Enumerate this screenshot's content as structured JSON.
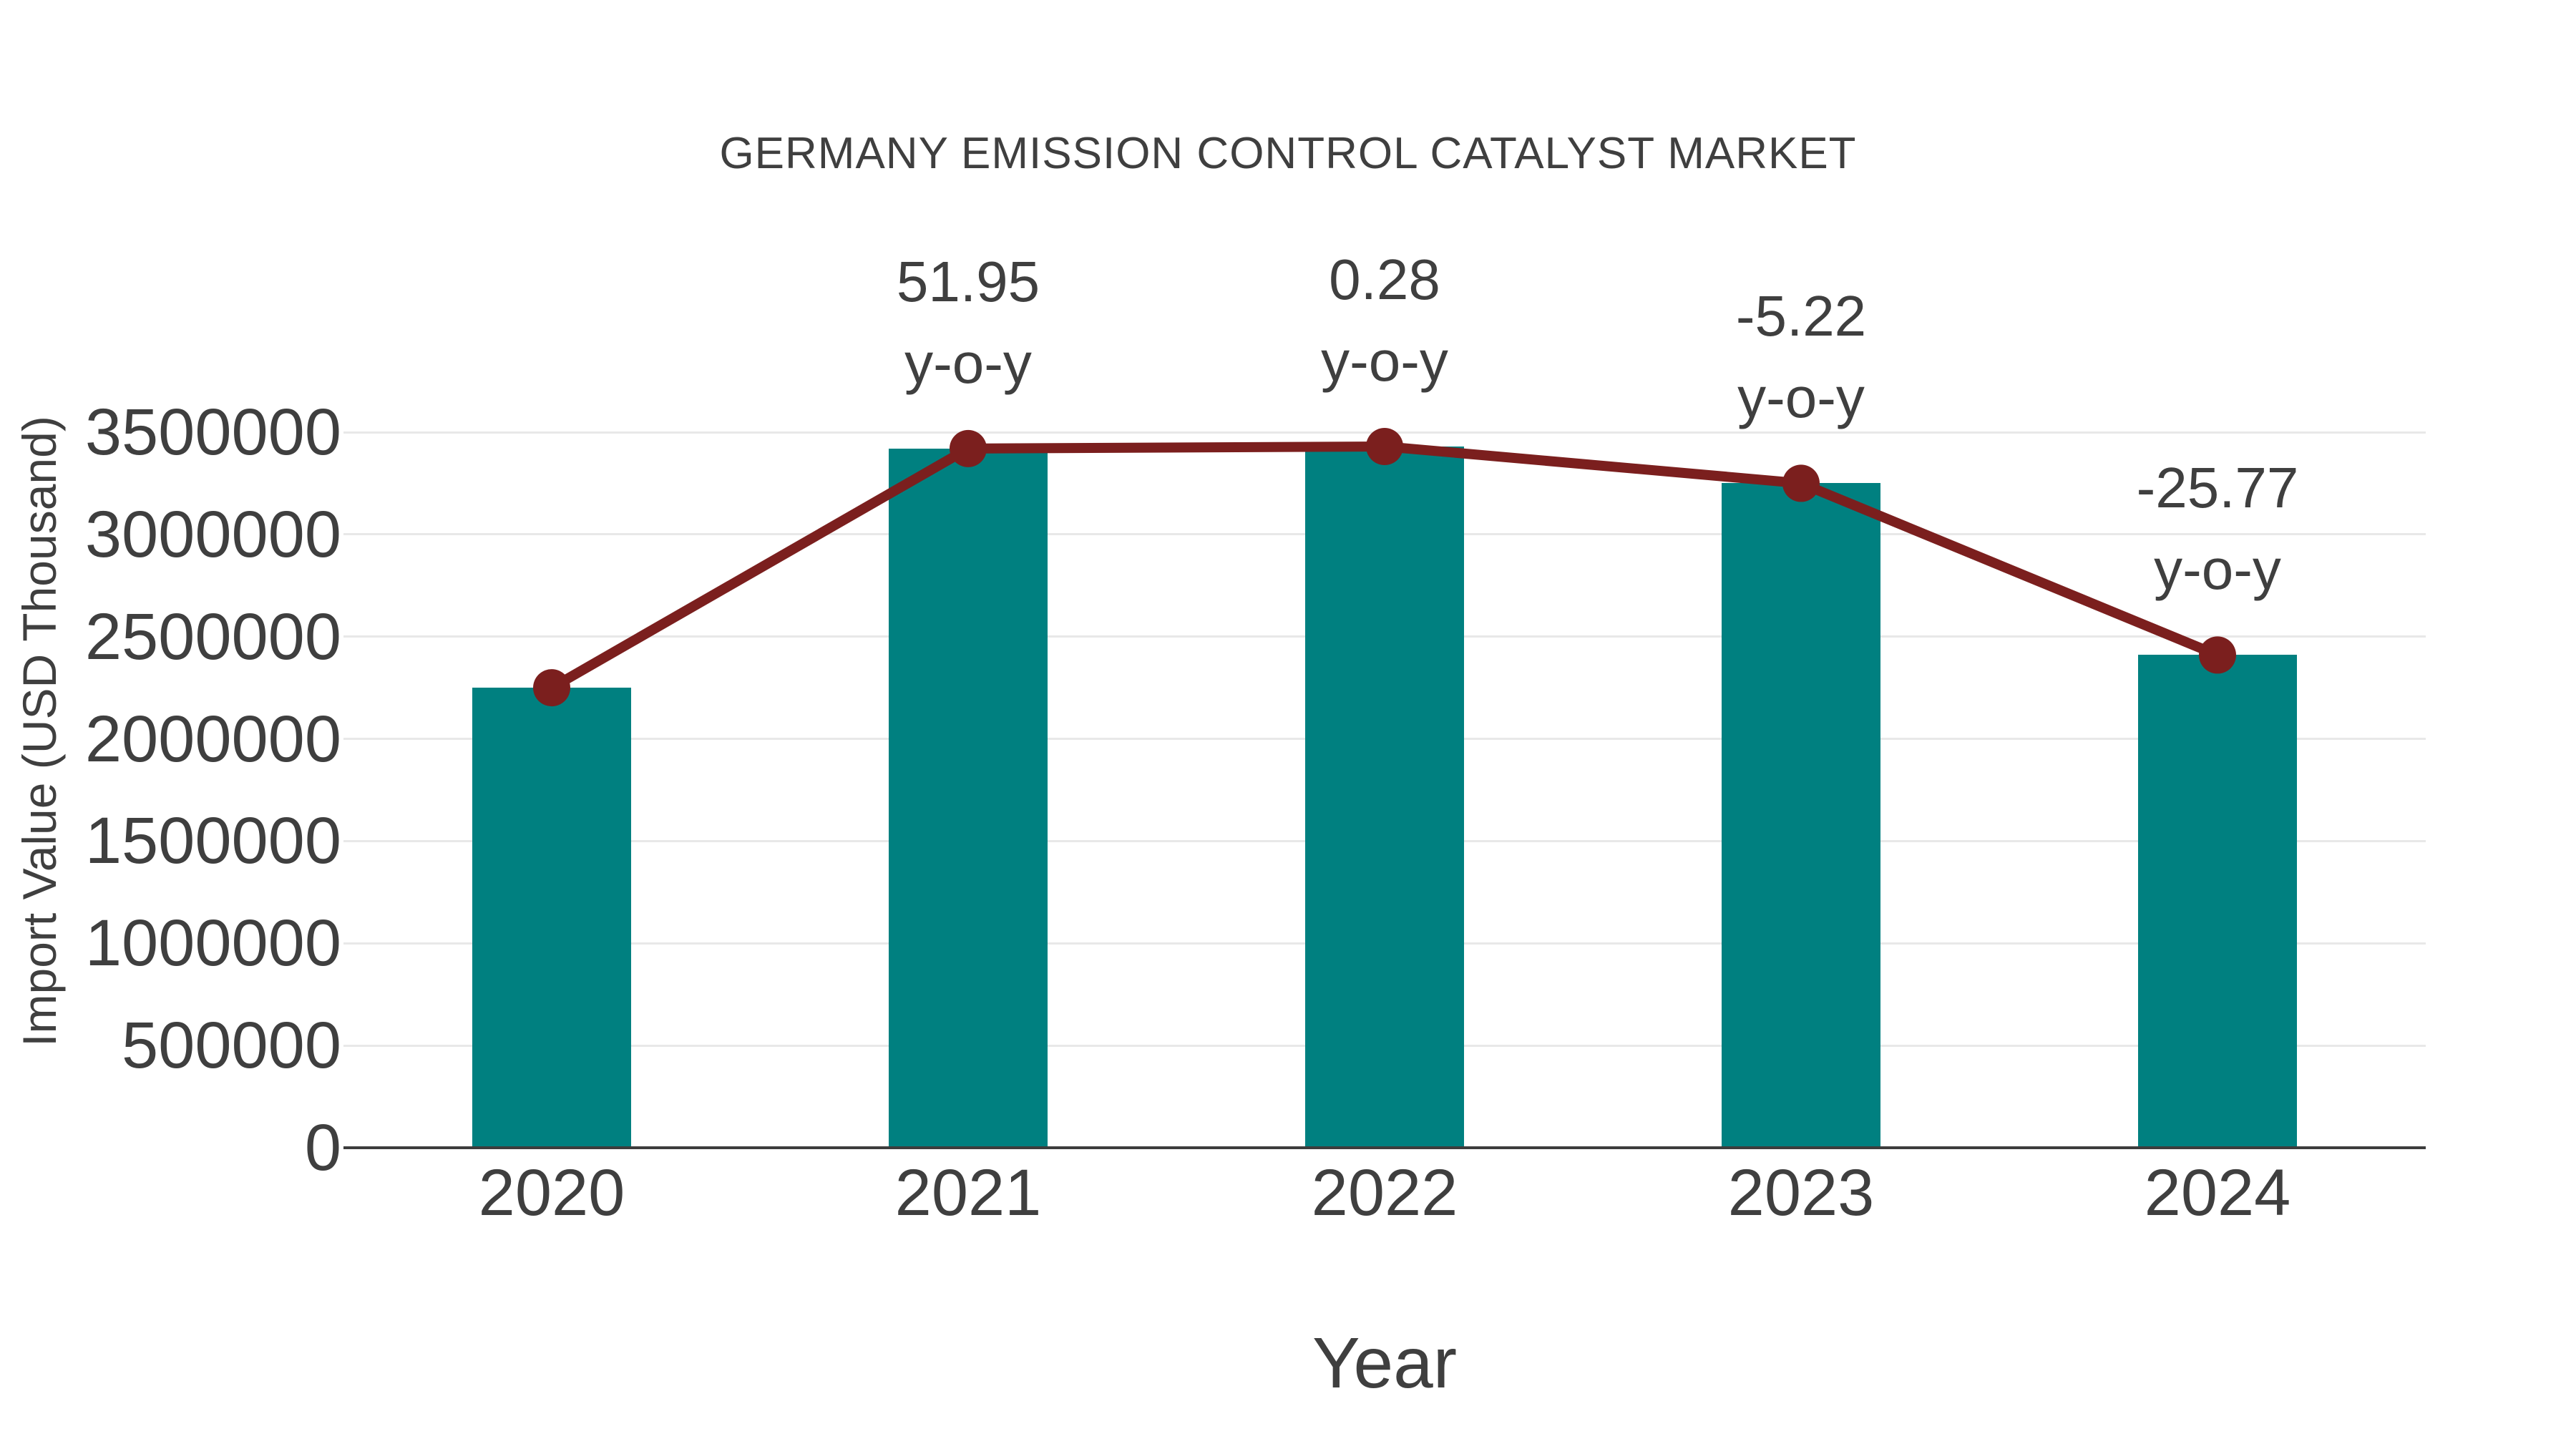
{
  "page": {
    "background": "#ffffff"
  },
  "colors": {
    "text": "#3F3F3F",
    "grid": "#E8E8E8",
    "axis": "#3D3D3D",
    "bar": "#008080",
    "line": "#7B1F1E"
  },
  "chart_data": {
    "type": "bar",
    "overlay_type": "line",
    "title": "GERMANY EMISSION CONTROL CATALYST MARKET",
    "xlabel": "Year",
    "ylabel": "Import Value (USD Thousand)",
    "categories": [
      "2020",
      "2021",
      "2022",
      "2023",
      "2024"
    ],
    "series": [
      {
        "name": "Import Value bars",
        "type": "bar",
        "color": "#008080",
        "values": [
          2250000,
          3420000,
          3430000,
          3250000,
          2410000
        ]
      },
      {
        "name": "Import Value trend",
        "type": "line",
        "color": "#7B1F1E",
        "values": [
          2250000,
          3420000,
          3430000,
          3250000,
          2410000
        ]
      }
    ],
    "annotations": [
      {
        "category": "2021",
        "value": "51.95",
        "suffix": "y-o-y"
      },
      {
        "category": "2022",
        "value": "0.28",
        "suffix": "y-o-y"
      },
      {
        "category": "2023",
        "value": "-5.22",
        "suffix": "y-o-y"
      },
      {
        "category": "2024",
        "value": "-25.77",
        "suffix": "y-o-y"
      }
    ],
    "yticks": [
      0,
      500000,
      1000000,
      1500000,
      2000000,
      2500000,
      3000000,
      3500000
    ],
    "ytick_labels": [
      "0",
      "500000",
      "1000000",
      "1500000",
      "2000000",
      "2500000",
      "3000000",
      "3500000"
    ],
    "ylim": [
      0,
      3500000
    ],
    "grid": true,
    "legend": false
  }
}
